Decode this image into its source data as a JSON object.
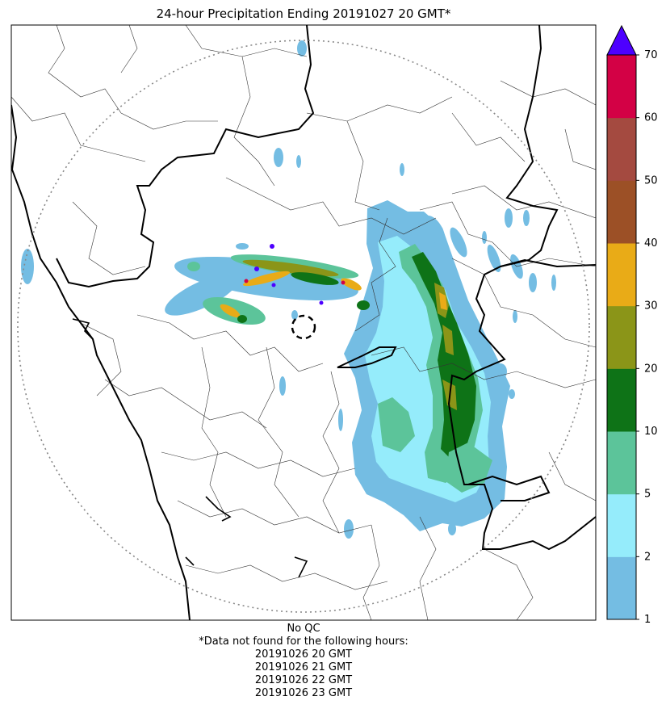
{
  "title": "24-hour Precipitation Ending 20191027 20 GMT*",
  "colorbar": {
    "ticks": [
      "1",
      "2",
      "5",
      "10",
      "20",
      "30",
      "40",
      "50",
      "60",
      "70"
    ],
    "colors": [
      "#74bde3",
      "#95ecfb",
      "#5cc49a",
      "#0e7317",
      "#8b9518",
      "#e9ab17",
      "#9c5026",
      "#a44a40",
      "#d30145"
    ],
    "extend_color": "#4d00ff"
  },
  "footer": {
    "qc": "No QC",
    "missing_header": "*Data not found for the following hours:",
    "missing_hours": [
      "20191026 20 GMT",
      "20191026 21 GMT",
      "20191026 22 GMT",
      "20191026 23 GMT"
    ]
  }
}
